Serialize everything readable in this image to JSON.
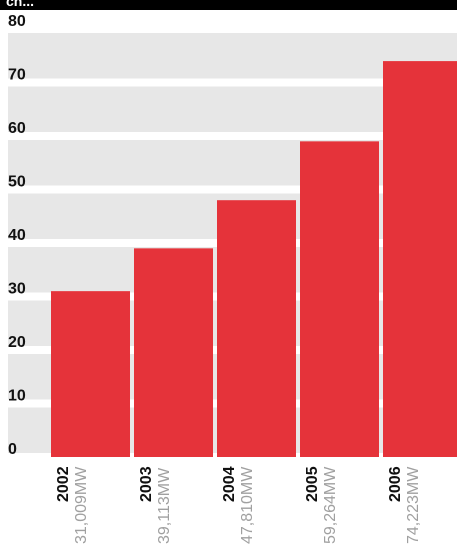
{
  "title": "ch...",
  "colors": {
    "bar": "#e5333a",
    "band": "#e7e7e7",
    "title_bg": "#000000"
  },
  "chart_data": {
    "type": "bar",
    "title": "",
    "xlabel": "",
    "ylabel": "",
    "ylim": [
      0,
      80
    ],
    "yticks": [
      0,
      10,
      20,
      30,
      40,
      50,
      60,
      70,
      80
    ],
    "categories": [
      "2002",
      "2003",
      "2004",
      "2005",
      "2006"
    ],
    "values": [
      31,
      39,
      48,
      59,
      74
    ],
    "value_labels": [
      "31,009MW",
      "39,113MW",
      "47,810MW",
      "59,264MW",
      "74,223MW"
    ],
    "grid": "horizontal bands"
  }
}
